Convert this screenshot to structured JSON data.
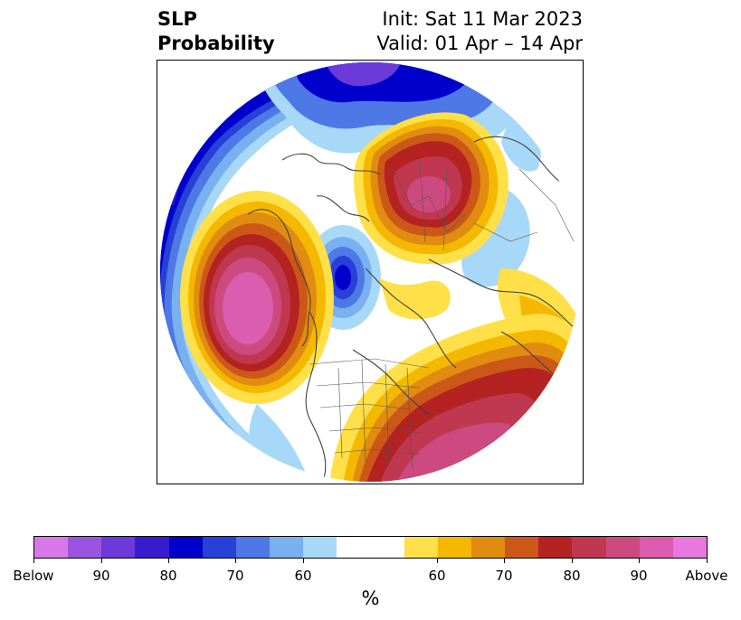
{
  "title": {
    "left_line1": "SLP",
    "left_line2": "Probability",
    "right_line1": "Init: Sat 11 Mar 2023",
    "right_line2": "Valid: 01 Apr – 14 Apr"
  },
  "colorbar": {
    "unit": "%",
    "tick_labels": [
      "Below",
      "90",
      "80",
      "70",
      "60",
      "60",
      "70",
      "80",
      "90",
      "Above"
    ],
    "colors": [
      "#d878e8",
      "#9a55e0",
      "#6b3ad8",
      "#3a1cd0",
      "#0000cc",
      "#2640d8",
      "#4e78e6",
      "#78b0f0",
      "#a8d8f8",
      "#ffffff",
      "#ffe048",
      "#f4b800",
      "#e08c10",
      "#cc5818",
      "#b42222",
      "#c03850",
      "#cc4a80",
      "#dc5cb0",
      "#e878e0"
    ]
  }
}
